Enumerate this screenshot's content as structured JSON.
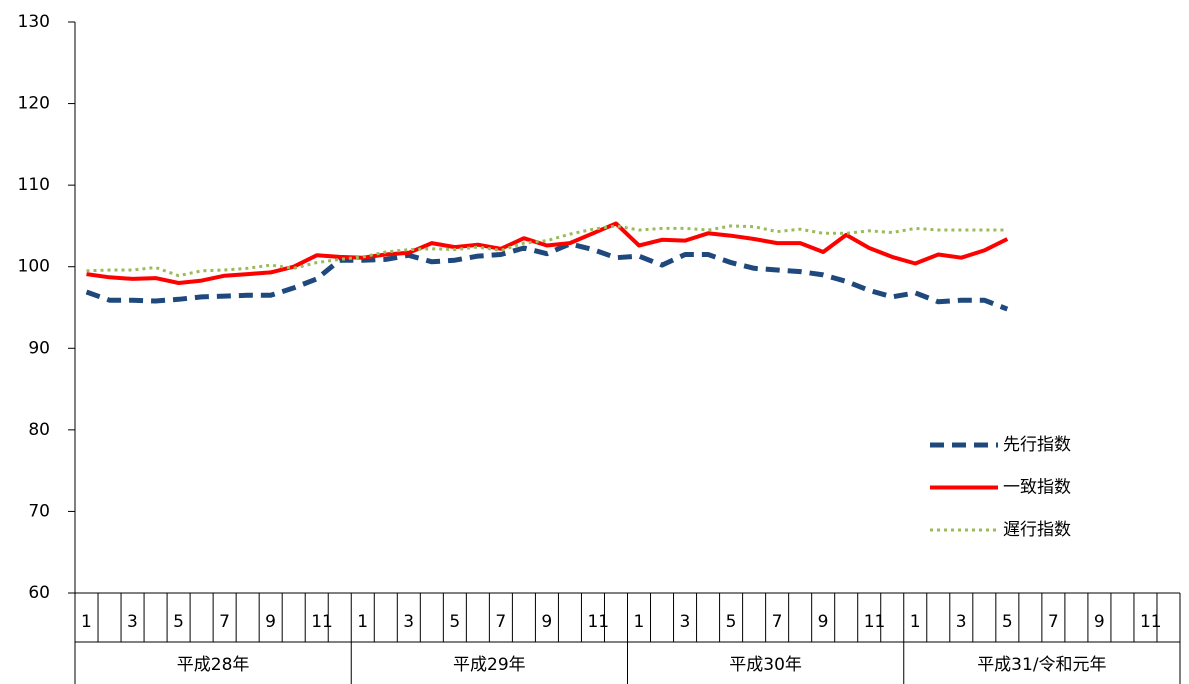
{
  "chart_data": {
    "type": "line",
    "categories": [
      "1",
      null,
      "3",
      null,
      "5",
      null,
      "7",
      null,
      "9",
      null,
      "11",
      null,
      "1",
      null,
      "3",
      null,
      "5",
      null,
      "7",
      null,
      "9",
      null,
      "11",
      null,
      "1",
      null,
      "3",
      null,
      "5",
      null,
      "7",
      null,
      "9",
      null,
      "11",
      null,
      "1",
      null,
      "3",
      null,
      "5",
      null,
      "7",
      null,
      "9",
      null,
      "11",
      null
    ],
    "groups": [
      "平成28年",
      "平成29年",
      "平成30年",
      "平成31/令和元年"
    ],
    "ylim": [
      60,
      130
    ],
    "yticks": [
      60,
      70,
      80,
      90,
      100,
      110,
      120,
      130
    ],
    "legend": "lower-right",
    "series": [
      {
        "name": "先行指数",
        "color": "#1F497D",
        "style": "dashed",
        "width": 5,
        "values": [
          96.9,
          95.9,
          95.9,
          95.8,
          96.0,
          96.3,
          96.4,
          96.5,
          96.5,
          97.4,
          98.5,
          100.8,
          100.8,
          100.9,
          101.4,
          100.6,
          100.8,
          101.3,
          101.5,
          102.3,
          101.6,
          102.8,
          102.1,
          101.1,
          101.3,
          100.2,
          101.5,
          101.5,
          100.5,
          99.8,
          99.6,
          99.4,
          99.0,
          98.2,
          97.1,
          96.3,
          96.8,
          95.7,
          95.9,
          95.9,
          94.8,
          null,
          null,
          null,
          null,
          null,
          null,
          null
        ]
      },
      {
        "name": "一致指数",
        "color": "#FF0000",
        "style": "solid",
        "width": 4,
        "values": [
          99.1,
          98.7,
          98.5,
          98.6,
          98.0,
          98.3,
          98.9,
          99.1,
          99.3,
          100.0,
          101.4,
          101.2,
          101.1,
          101.5,
          101.7,
          102.9,
          102.4,
          102.7,
          102.2,
          103.5,
          102.6,
          102.9,
          104.1,
          105.3,
          102.6,
          103.3,
          103.2,
          104.1,
          103.8,
          103.4,
          102.9,
          102.9,
          101.8,
          103.9,
          102.3,
          101.2,
          100.4,
          101.5,
          101.1,
          102.0,
          103.4,
          null,
          null,
          null,
          null,
          null,
          null,
          null
        ]
      },
      {
        "name": "遅行指数",
        "color": "#9BBB59",
        "style": "dotted",
        "width": 3,
        "values": [
          99.5,
          99.6,
          99.6,
          99.9,
          98.9,
          99.5,
          99.6,
          99.8,
          100.2,
          99.8,
          100.5,
          100.9,
          101.2,
          101.8,
          102.1,
          102.2,
          102.1,
          102.4,
          102.0,
          102.9,
          103.2,
          104.0,
          104.6,
          105.0,
          104.5,
          104.7,
          104.7,
          104.5,
          105.0,
          104.9,
          104.3,
          104.6,
          104.1,
          104.1,
          104.4,
          104.2,
          104.7,
          104.5,
          104.5,
          104.5,
          104.5,
          null,
          null,
          null,
          null,
          null,
          null,
          null
        ]
      }
    ]
  }
}
